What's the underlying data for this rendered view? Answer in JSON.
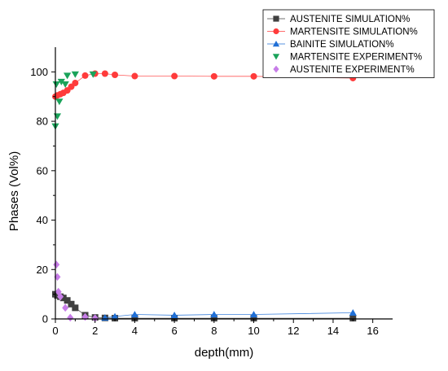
{
  "chart_data": {
    "type": "scatter",
    "title": "",
    "xlabel": "depth(mm)",
    "ylabel": "Phases (Vol%)",
    "xlim": [
      0,
      17
    ],
    "ylim": [
      0,
      110
    ],
    "xticks": [
      0,
      2,
      4,
      6,
      8,
      10,
      12,
      14,
      16
    ],
    "yticks": [
      0,
      20,
      40,
      60,
      80,
      100
    ],
    "grid": false,
    "legend_position": "top-right",
    "series": [
      {
        "name": "AUSTENITE SIMULATION%",
        "marker": "square",
        "color": "#404040",
        "line": true,
        "x": [
          0,
          0.1,
          0.25,
          0.4,
          0.6,
          0.8,
          1.0,
          1.5,
          2.0,
          2.5,
          3.0,
          4.0,
          6.0,
          8.0,
          10.0,
          15.0
        ],
        "y": [
          10,
          9.5,
          9,
          8.5,
          7.5,
          6,
          4.5,
          1.5,
          0.6,
          0.4,
          0.3,
          0.3,
          0.3,
          0.3,
          0.3,
          0.3
        ]
      },
      {
        "name": "MARTENSITE SIMULATION%",
        "marker": "circle",
        "color": "#ff3b3b",
        "line": true,
        "x": [
          0,
          0.1,
          0.25,
          0.4,
          0.6,
          0.8,
          1.0,
          1.5,
          2.0,
          2.5,
          3.0,
          4.0,
          6.0,
          8.0,
          10.0,
          15.0
        ],
        "y": [
          90,
          90.5,
          91,
          91.5,
          92.5,
          94,
          95.5,
          98.5,
          99.3,
          99.3,
          98.8,
          98.3,
          98.3,
          98.2,
          98.2,
          97.5
        ]
      },
      {
        "name": "BAINITE SIMULATION%",
        "marker": "triangle-up",
        "color": "#1f6fd6",
        "line": true,
        "x": [
          2.5,
          3.0,
          4.0,
          6.0,
          8.0,
          10.0,
          15.0
        ],
        "y": [
          0.5,
          1.0,
          1.8,
          1.5,
          1.8,
          1.8,
          2.5
        ]
      },
      {
        "name": "MARTENSITE EXPERIMENT%",
        "marker": "triangle-down",
        "color": "#1aa35a",
        "line": false,
        "x": [
          0.0,
          0.05,
          0.1,
          0.2,
          0.3,
          0.5,
          0.6,
          1.0,
          1.9
        ],
        "y": [
          78,
          95,
          82,
          88,
          96,
          95,
          98.5,
          99,
          99
        ]
      },
      {
        "name": "AUSTENITE EXPERIMENT%",
        "marker": "diamond",
        "color": "#c77de8",
        "line": false,
        "x": [
          0.05,
          0.1,
          0.15,
          0.25,
          0.5,
          0.75,
          1.5,
          2.0
        ],
        "y": [
          22,
          17,
          11,
          9,
          4.5,
          0.5,
          0.8,
          0.3
        ]
      }
    ]
  }
}
